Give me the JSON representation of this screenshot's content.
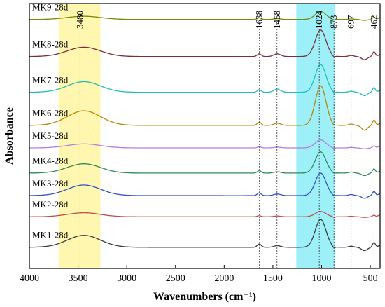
{
  "chart_data": {
    "type": "line",
    "title": "",
    "xlabel": "Wavenumbers (cm⁻¹)",
    "ylabel": "Absorbance",
    "x_reversed": true,
    "xlim": [
      4000,
      400
    ],
    "x_ticks": [
      4000,
      3500,
      3000,
      2500,
      2000,
      1500,
      1000,
      500
    ],
    "x_tick_labels": [
      "4000",
      "3500",
      "3000",
      "2500",
      "2000",
      "1500",
      "1000",
      "500"
    ],
    "y_ticks_shown": false,
    "highlight_bands": [
      {
        "from": 3700,
        "to": 3270,
        "color": "#fff7b0"
      },
      {
        "from": 1260,
        "to": 860,
        "color": "#9ef0f8"
      }
    ],
    "peak_markers": [
      {
        "x": 3480,
        "label": "3480"
      },
      {
        "x": 1638,
        "label": "1638"
      },
      {
        "x": 1458,
        "label": "1458"
      },
      {
        "x": 1024,
        "label": "1024"
      },
      {
        "x": 873,
        "label": "873"
      },
      {
        "x": 697,
        "label": "697"
      },
      {
        "x": 462,
        "label": "462"
      }
    ],
    "series": [
      {
        "name": "MK1-28d",
        "color": "#3a3a3a",
        "baseline": 0.08,
        "oh": 0.045,
        "b1638": 0.012,
        "b1458": 0.006,
        "peak": 0.105,
        "b873": -0.006,
        "b697": 0.004,
        "b462": 0.018
      },
      {
        "name": "MK2-28d",
        "color": "#c0504d",
        "baseline": 0.195,
        "oh": 0.015,
        "b1638": 0.004,
        "b1458": 0.003,
        "peak": 0.02,
        "b873": -0.003,
        "b697": 0.002,
        "b462": 0.006
      },
      {
        "name": "MK3-28d",
        "color": "#2f54c8",
        "baseline": 0.275,
        "oh": 0.04,
        "b1638": 0.01,
        "b1458": 0.006,
        "peak": 0.085,
        "b873": -0.004,
        "b697": 0.004,
        "b462": 0.016
      },
      {
        "name": "MK4-28d",
        "color": "#2e8b57",
        "baseline": 0.36,
        "oh": 0.035,
        "b1638": 0.009,
        "b1458": 0.005,
        "peak": 0.08,
        "b873": -0.004,
        "b697": 0.004,
        "b462": 0.016
      },
      {
        "name": "MK5-28d",
        "color": "#b57edc",
        "baseline": 0.455,
        "oh": 0.015,
        "b1638": 0.004,
        "b1458": 0.003,
        "peak": 0.03,
        "b873": -0.003,
        "b697": 0.002,
        "b462": 0.008
      },
      {
        "name": "MK6-28d",
        "color": "#b8860b",
        "baseline": 0.54,
        "oh": 0.055,
        "b1638": 0.012,
        "b1458": 0.008,
        "peak": 0.15,
        "b873": -0.005,
        "b697": 0.005,
        "b462": 0.02
      },
      {
        "name": "MK7-28d",
        "color": "#1fc0b8",
        "baseline": 0.665,
        "oh": 0.04,
        "b1638": 0.01,
        "b1458": 0.012,
        "peak": 0.105,
        "b873": -0.005,
        "b697": 0.004,
        "b462": 0.018
      },
      {
        "name": "MK8-28d",
        "color": "#7b2d3a",
        "baseline": 0.8,
        "oh": 0.035,
        "b1638": 0.01,
        "b1458": 0.01,
        "peak": 0.1,
        "b873": -0.005,
        "b697": 0.004,
        "b462": 0.018
      },
      {
        "name": "MK9-28d",
        "color": "#7a8a0a",
        "baseline": 0.94,
        "oh": 0.012,
        "b1638": 0.006,
        "b1458": 0.003,
        "peak": 0.03,
        "b873": -0.003,
        "b697": 0.002,
        "b462": 0.008
      }
    ]
  }
}
